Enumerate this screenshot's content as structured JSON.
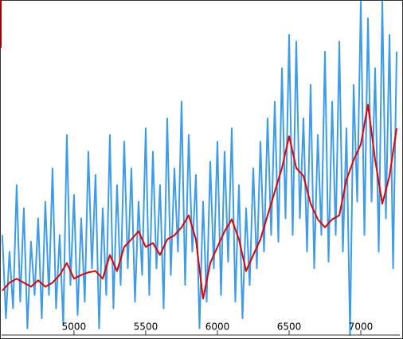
{
  "chart_data": {
    "type": "line",
    "xlim": [
      4495,
      7272
    ],
    "ylim": [
      0,
      100
    ],
    "xticks": [
      5000,
      5500,
      6000,
      6500,
      7000
    ],
    "series": [
      {
        "color": "#3d9be9",
        "x": [
          4500,
          4525,
          4550,
          4575,
          4600,
          4625,
          4650,
          4675,
          4700,
          4725,
          4750,
          4775,
          4800,
          4825,
          4850,
          4875,
          4900,
          4925,
          4950,
          4975,
          5000,
          5025,
          5050,
          5075,
          5100,
          5125,
          5150,
          5175,
          5200,
          5225,
          5250,
          5275,
          5300,
          5325,
          5350,
          5375,
          5400,
          5425,
          5450,
          5475,
          5500,
          5525,
          5550,
          5575,
          5600,
          5625,
          5650,
          5675,
          5700,
          5725,
          5750,
          5775,
          5800,
          5825,
          5850,
          5875,
          5900,
          5925,
          5950,
          5975,
          6000,
          6025,
          6050,
          6075,
          6100,
          6125,
          6150,
          6175,
          6200,
          6225,
          6250,
          6275,
          6300,
          6325,
          6350,
          6375,
          6400,
          6425,
          6450,
          6475,
          6500,
          6525,
          6550,
          6575,
          6600,
          6625,
          6650,
          6675,
          6700,
          6725,
          6750,
          6775,
          6800,
          6825,
          6850,
          6875,
          6900,
          6925,
          6950,
          6975,
          7000,
          7025,
          7050,
          7075,
          7100,
          7125,
          7150,
          7175,
          7200,
          7225,
          7250
        ],
        "values": [
          30,
          5,
          25,
          8,
          45,
          10,
          38,
          2,
          28,
          12,
          35,
          5,
          40,
          12,
          50,
          8,
          30,
          3,
          60,
          15,
          42,
          6,
          35,
          10,
          55,
          20,
          48,
          2,
          38,
          12,
          60,
          8,
          45,
          15,
          58,
          20,
          50,
          10,
          40,
          18,
          62,
          12,
          55,
          20,
          45,
          8,
          65,
          18,
          50,
          25,
          70,
          15,
          60,
          25,
          48,
          2,
          40,
          10,
          52,
          20,
          58,
          12,
          55,
          22,
          62,
          10,
          45,
          5,
          38,
          15,
          50,
          20,
          58,
          25,
          65,
          30,
          70,
          28,
          80,
          35,
          90,
          30,
          88,
          35,
          65,
          25,
          75,
          20,
          60,
          30,
          85,
          22,
          70,
          30,
          88,
          25,
          62,
          0,
          75,
          40,
          100,
          30,
          95,
          40,
          80,
          25,
          100,
          35,
          90,
          20,
          85
        ]
      },
      {
        "color": "#e00000",
        "x": [
          4500,
          4550,
          4600,
          4650,
          4700,
          4750,
          4800,
          4850,
          4900,
          4950,
          5000,
          5050,
          5100,
          5150,
          5200,
          5250,
          5300,
          5350,
          5400,
          5450,
          5500,
          5550,
          5600,
          5650,
          5700,
          5750,
          5800,
          5850,
          5900,
          5950,
          6000,
          6050,
          6100,
          6150,
          6200,
          6250,
          6300,
          6350,
          6400,
          6450,
          6500,
          6550,
          6600,
          6650,
          6700,
          6750,
          6800,
          6850,
          6900,
          6950,
          7000,
          7050,
          7100,
          7150,
          7200,
          7250
        ],
        "values": [
          13.3,
          15.7,
          16.9,
          15.7,
          14.5,
          16.4,
          14.5,
          15.7,
          18,
          21.6,
          16.9,
          18,
          18.8,
          19.2,
          16.9,
          24,
          19.2,
          26.4,
          28.7,
          31.1,
          26.4,
          27.6,
          24,
          28.7,
          29.9,
          32.3,
          35.9,
          28.7,
          10.9,
          21.6,
          26.4,
          31.1,
          34.7,
          28.7,
          19.2,
          24,
          28.7,
          35.9,
          43,
          50.1,
          59.6,
          50.1,
          47.7,
          39.4,
          34.7,
          32.3,
          34.7,
          35.9,
          46.6,
          52.5,
          57.2,
          69.1,
          52.5,
          39.4,
          47.7,
          62
        ]
      }
    ]
  }
}
